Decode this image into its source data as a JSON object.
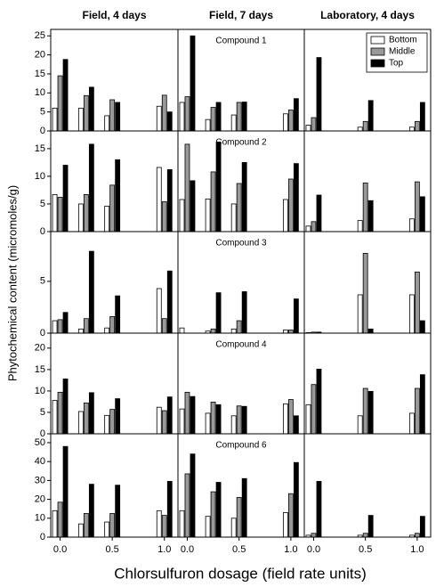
{
  "xlabel": "Chlorsulfuron dosage (field rate units)",
  "ylabel": "Phytochemical content (micromoles/g)",
  "chart_data": [
    {
      "type": "bar",
      "title": "Field, 4 days",
      "x": [
        0,
        0.25,
        0.5,
        1.0
      ],
      "xlim": [
        -0.09,
        1.13
      ],
      "ylim": [
        0,
        26.7
      ],
      "yticks": [
        0,
        5,
        10,
        15,
        20,
        25
      ],
      "series": [
        {
          "color": "#ffffff",
          "values": [
            6,
            6,
            4,
            6.5
          ]
        },
        {
          "color": "#999999",
          "values": [
            14.5,
            9.3,
            8.2,
            9.4
          ]
        },
        {
          "color": "#000000",
          "values": [
            18.8,
            11.5,
            7.5,
            5
          ]
        }
      ]
    },
    {
      "type": "bar",
      "title": "Field, 7 days",
      "annotation": "Compound 1",
      "x": [
        0,
        0.25,
        0.5,
        1.0
      ],
      "xlim": [
        -0.09,
        1.13
      ],
      "ylim": [
        0,
        26.7
      ],
      "series": [
        {
          "color": "#ffffff",
          "values": [
            7.5,
            3,
            4.2,
            4.5
          ]
        },
        {
          "color": "#999999",
          "values": [
            9,
            6.2,
            7.5,
            5.5
          ]
        },
        {
          "color": "#000000",
          "values": [
            25,
            7.5,
            7.6,
            8.5
          ]
        }
      ]
    },
    {
      "type": "bar",
      "title": "Laboratory, 4 days",
      "legend": "upper right",
      "x": [
        0,
        0.5,
        1.0
      ],
      "xlim": [
        -0.09,
        1.13
      ],
      "ylim": [
        0,
        26.7
      ],
      "series": [
        {
          "name": "Bottom",
          "color": "#ffffff",
          "values": [
            1.5,
            1,
            1
          ]
        },
        {
          "name": "Middle",
          "color": "#999999",
          "values": [
            3.5,
            2.5,
            2.5
          ]
        },
        {
          "name": "Top",
          "color": "#000000",
          "values": [
            19.3,
            8,
            7.5
          ]
        }
      ]
    },
    {
      "type": "bar",
      "x": [
        0,
        0.25,
        0.5,
        1.0
      ],
      "xlim": [
        -0.09,
        1.13
      ],
      "ylim": [
        0,
        18.2
      ],
      "yticks": [
        0,
        5,
        10,
        15
      ],
      "series": [
        {
          "color": "#ffffff",
          "values": [
            6.7,
            5,
            4.6,
            11.6
          ]
        },
        {
          "color": "#999999",
          "values": [
            6.2,
            6.7,
            8.4,
            5.4
          ]
        },
        {
          "color": "#000000",
          "values": [
            12,
            15.8,
            13,
            11.2
          ]
        }
      ]
    },
    {
      "type": "bar",
      "annotation": "Compound 2",
      "x": [
        0,
        0.25,
        0.5,
        1.0
      ],
      "xlim": [
        -0.09,
        1.13
      ],
      "ylim": [
        0,
        18.2
      ],
      "series": [
        {
          "color": "#ffffff",
          "values": [
            5.8,
            5.9,
            5,
            5.8
          ]
        },
        {
          "color": "#999999",
          "values": [
            15.8,
            10.8,
            8.7,
            9.5
          ]
        },
        {
          "color": "#000000",
          "values": [
            9.2,
            16.2,
            12.5,
            12.3
          ]
        }
      ]
    },
    {
      "type": "bar",
      "x": [
        0,
        0.5,
        1.0
      ],
      "xlim": [
        -0.09,
        1.13
      ],
      "ylim": [
        0,
        18.2
      ],
      "series": [
        {
          "color": "#ffffff",
          "values": [
            1,
            2,
            2.3
          ]
        },
        {
          "color": "#999999",
          "values": [
            1.8,
            8.8,
            9
          ]
        },
        {
          "color": "#000000",
          "values": [
            6.6,
            5.6,
            6.3
          ]
        }
      ]
    },
    {
      "type": "bar",
      "x": [
        0,
        0.25,
        0.5,
        1.0
      ],
      "xlim": [
        -0.09,
        1.13
      ],
      "ylim": [
        0,
        9.8
      ],
      "yticks": [
        0,
        5
      ],
      "series": [
        {
          "color": "#ffffff",
          "values": [
            1.2,
            0.4,
            0.5,
            4.3
          ]
        },
        {
          "color": "#999999",
          "values": [
            1.3,
            1.4,
            1.6,
            1.4
          ]
        },
        {
          "color": "#000000",
          "values": [
            2,
            7.9,
            3.6,
            6
          ]
        }
      ]
    },
    {
      "type": "bar",
      "annotation": "Compound 3",
      "x": [
        0,
        0.25,
        0.5,
        1.0
      ],
      "xlim": [
        -0.09,
        1.13
      ],
      "ylim": [
        0,
        9.8
      ],
      "series": [
        {
          "color": "#ffffff",
          "values": [
            0.5,
            0.2,
            0.4,
            0.3
          ]
        },
        {
          "color": "#999999",
          "values": [
            0,
            0.4,
            1.2,
            0.3
          ]
        },
        {
          "color": "#000000",
          "values": [
            0,
            3.9,
            4,
            3.3
          ]
        }
      ]
    },
    {
      "type": "bar",
      "x": [
        0,
        0.5,
        1.0
      ],
      "xlim": [
        -0.09,
        1.13
      ],
      "ylim": [
        0,
        9.8
      ],
      "series": [
        {
          "color": "#ffffff",
          "values": [
            0.05,
            3.7,
            3.7
          ]
        },
        {
          "color": "#999999",
          "values": [
            0.1,
            7.7,
            5.9
          ]
        },
        {
          "color": "#000000",
          "values": [
            0.1,
            0.4,
            1.2
          ]
        }
      ]
    },
    {
      "type": "bar",
      "x": [
        0,
        0.25,
        0.5,
        1.0
      ],
      "xlim": [
        -0.09,
        1.13
      ],
      "ylim": [
        0,
        23.5
      ],
      "yticks": [
        0,
        5,
        10,
        15,
        20
      ],
      "series": [
        {
          "color": "#ffffff",
          "values": [
            7.8,
            5.2,
            4.3,
            6.2
          ]
        },
        {
          "color": "#999999",
          "values": [
            9.7,
            7.2,
            5.7,
            5.4
          ]
        },
        {
          "color": "#000000",
          "values": [
            12.8,
            9.6,
            8.2,
            8.6
          ]
        }
      ]
    },
    {
      "type": "bar",
      "annotation": "Compound 4",
      "x": [
        0,
        0.25,
        0.5,
        1.0
      ],
      "xlim": [
        -0.09,
        1.13
      ],
      "ylim": [
        0,
        23.5
      ],
      "series": [
        {
          "color": "#ffffff",
          "values": [
            5.8,
            4.8,
            4.2,
            7
          ]
        },
        {
          "color": "#999999",
          "values": [
            9.7,
            7.4,
            6.5,
            8
          ]
        },
        {
          "color": "#000000",
          "values": [
            8.7,
            6.8,
            6.4,
            4.2
          ]
        }
      ]
    },
    {
      "type": "bar",
      "x": [
        0,
        0.5,
        1.0
      ],
      "xlim": [
        -0.09,
        1.13
      ],
      "ylim": [
        0,
        23.5
      ],
      "series": [
        {
          "color": "#ffffff",
          "values": [
            6.8,
            4.2,
            4.8
          ]
        },
        {
          "color": "#999999",
          "values": [
            11.5,
            10.6,
            10.6
          ]
        },
        {
          "color": "#000000",
          "values": [
            15.1,
            9.9,
            13.8
          ]
        }
      ]
    },
    {
      "type": "bar",
      "x": [
        0,
        0.25,
        0.5,
        1.0
      ],
      "xlim": [
        -0.09,
        1.13
      ],
      "ylim": [
        0,
        54.7
      ],
      "yticks": [
        0,
        10,
        20,
        30,
        40,
        50
      ],
      "xticks": [
        {
          "value": 0,
          "label": "0.0"
        },
        {
          "value": 0.5,
          "label": "0.5"
        },
        {
          "value": 1.0,
          "label": "1.0"
        }
      ],
      "series": [
        {
          "color": "#ffffff",
          "values": [
            14,
            7,
            8,
            14
          ]
        },
        {
          "color": "#999999",
          "values": [
            18.5,
            12.5,
            12.5,
            11.5
          ]
        },
        {
          "color": "#000000",
          "values": [
            48,
            28,
            27.5,
            29.5
          ]
        }
      ]
    },
    {
      "type": "bar",
      "annotation": "Compound 6",
      "x": [
        0,
        0.25,
        0.5,
        1.0
      ],
      "xlim": [
        -0.09,
        1.13
      ],
      "ylim": [
        0,
        54.7
      ],
      "xticks": [
        {
          "value": 0,
          "label": "0.0"
        },
        {
          "value": 0.5,
          "label": "0.5"
        },
        {
          "value": 1.0,
          "label": "1.0"
        }
      ],
      "series": [
        {
          "color": "#ffffff",
          "values": [
            14,
            11,
            10,
            13
          ]
        },
        {
          "color": "#999999",
          "values": [
            33.5,
            24,
            21,
            23
          ]
        },
        {
          "color": "#000000",
          "values": [
            44,
            29,
            31,
            39.5
          ]
        }
      ]
    },
    {
      "type": "bar",
      "x": [
        0,
        0.5,
        1.0
      ],
      "xlim": [
        -0.09,
        1.13
      ],
      "ylim": [
        0,
        54.7
      ],
      "xticks": [
        {
          "value": 0,
          "label": "0.0"
        },
        {
          "value": 0.5,
          "label": "0.5"
        },
        {
          "value": 1.0,
          "label": "1.0"
        }
      ],
      "series": [
        {
          "color": "#ffffff",
          "values": [
            1,
            1,
            1
          ]
        },
        {
          "color": "#999999",
          "values": [
            2,
            2,
            2
          ]
        },
        {
          "color": "#000000",
          "values": [
            29.5,
            11.5,
            11
          ]
        }
      ]
    }
  ]
}
